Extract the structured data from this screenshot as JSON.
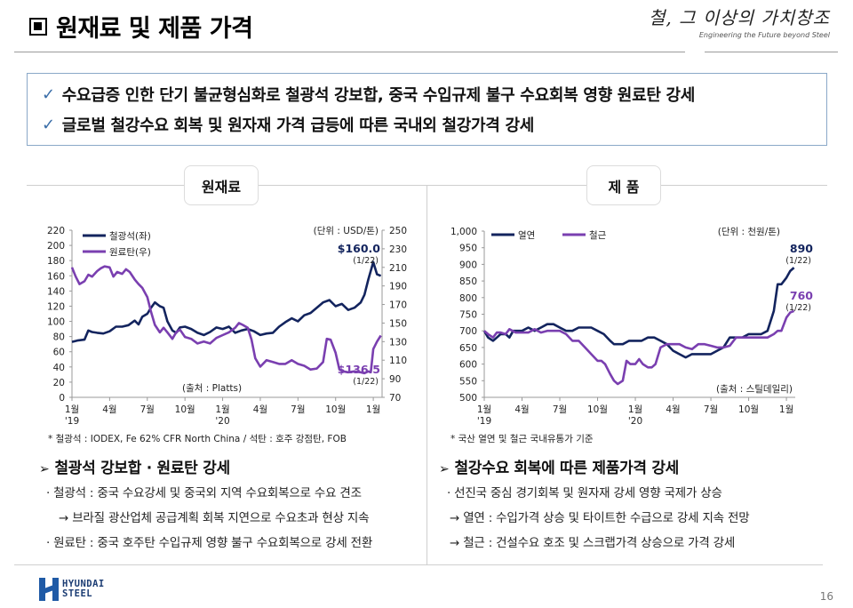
{
  "header": {
    "title": "원재료 및 제품 가격",
    "slogan_ko": "철, 그 이상의 가치창조",
    "slogan_en": "Engineering the Future beyond Steel"
  },
  "summary": [
    "수요급증 인한 단기 불균형심화로 철광석 강보합, 중국 수입규제 불구 수요회복 영향 원료탄 강세",
    "글로벌 철강수요 회복 및 원자재 가격 급등에 따른 국내외 철강가격 강세"
  ],
  "sections": {
    "left_tab": "원재료",
    "right_tab": "제 품"
  },
  "chart_data": [
    {
      "type": "line",
      "title": "원재료",
      "unit_label": "(단위 : USD/톤)",
      "source": "(출처 : Platts)",
      "footnote": "* 철광석 : IODEX, Fe 62% CFR North China / 석탄 : 호주 강점탄, FOB",
      "x_ticks": [
        "1월",
        "4월",
        "7월",
        "10월",
        "1월",
        "4월",
        "7월",
        "10월",
        "1월"
      ],
      "x_year_labels": [
        {
          "index": 0,
          "label": "'19"
        },
        {
          "index": 4,
          "label": "'20"
        }
      ],
      "y_left": {
        "ticks": [
          0,
          20,
          40,
          60,
          80,
          100,
          120,
          140,
          160,
          180,
          200,
          220
        ],
        "range": [
          0,
          220
        ]
      },
      "y_right": {
        "ticks": [
          70,
          90,
          110,
          130,
          150,
          170,
          190,
          210,
          230,
          250
        ],
        "range": [
          70,
          250
        ]
      },
      "x_range_months": [
        0,
        24.7
      ],
      "series": [
        {
          "name": "철광석(좌)",
          "axis": "left",
          "color": "#13245e",
          "x": [
            0,
            0.5,
            1,
            1.3,
            1.6,
            2,
            2.5,
            3,
            3.5,
            4,
            4.5,
            5,
            5.3,
            5.6,
            6,
            6.3,
            6.6,
            7,
            7.3,
            7.6,
            8,
            8.3,
            8.6,
            9,
            9.5,
            10,
            10.5,
            11,
            11.5,
            12,
            12.5,
            13,
            13.5,
            14,
            14.5,
            15,
            15.5,
            16,
            16.5,
            17,
            17.5,
            18,
            18.5,
            19,
            19.5,
            20,
            20.5,
            21,
            21.5,
            22,
            22.5,
            23,
            23.3,
            23.6,
            24,
            24.3,
            24.6
          ],
          "values": [
            73,
            75,
            76,
            88,
            86,
            85,
            84,
            87,
            93,
            93,
            95,
            101,
            96,
            106,
            110,
            118,
            125,
            120,
            118,
            100,
            88,
            85,
            92,
            93,
            90,
            85,
            82,
            86,
            92,
            90,
            93,
            85,
            88,
            90,
            87,
            82,
            84,
            85,
            93,
            99,
            104,
            100,
            108,
            111,
            118,
            125,
            128,
            120,
            123,
            115,
            118,
            125,
            135,
            155,
            178,
            162,
            160
          ]
        },
        {
          "name": "원료탄(우)",
          "axis": "right",
          "color": "#7a3fb0",
          "x": [
            0,
            0.3,
            0.6,
            1,
            1.3,
            1.6,
            2,
            2.3,
            2.6,
            3,
            3.3,
            3.6,
            4,
            4.3,
            4.6,
            5,
            5.3,
            5.6,
            6,
            6.3,
            6.6,
            7,
            7.3,
            7.6,
            8,
            8.3,
            8.6,
            9,
            9.5,
            10,
            10.5,
            11,
            11.5,
            12,
            12.5,
            13,
            13.3,
            13.6,
            14,
            14.3,
            14.6,
            15,
            15.5,
            16,
            16.5,
            17,
            17.5,
            18,
            18.5,
            19,
            19.5,
            20,
            20.3,
            20.6,
            21,
            21.3,
            21.6,
            22,
            22.5,
            23,
            23.3,
            23.6,
            23.8,
            24,
            24.3,
            24.6
          ],
          "values": [
            210,
            200,
            192,
            195,
            202,
            200,
            206,
            209,
            211,
            210,
            200,
            205,
            203,
            208,
            205,
            197,
            192,
            188,
            178,
            162,
            148,
            140,
            145,
            140,
            133,
            140,
            143,
            135,
            133,
            128,
            130,
            128,
            134,
            137,
            140,
            145,
            150,
            148,
            145,
            132,
            112,
            103,
            110,
            108,
            106,
            106,
            110,
            106,
            104,
            100,
            101,
            108,
            133,
            132,
            118,
            100,
            98,
            97,
            98,
            97,
            96,
            98,
            97,
            122,
            130,
            136.5
          ]
        }
      ],
      "annotations": [
        {
          "text": "$160.0",
          "date": "(1/22)",
          "series": "철광석(좌)",
          "value": 160.0
        },
        {
          "text": "$136.5",
          "date": "(1/22)",
          "series": "원료탄(우)",
          "value": 136.5
        }
      ]
    },
    {
      "type": "line",
      "title": "제 품",
      "unit_label": "(단위 : 천원/톤)",
      "source": "(출처 : 스틸데일리)",
      "footnote": "* 국산 열연 및 철근 국내유통가 기준",
      "x_ticks": [
        "1월",
        "4월",
        "7월",
        "10월",
        "1월",
        "4월",
        "7월",
        "10월",
        "1월"
      ],
      "x_year_labels": [
        {
          "index": 0,
          "label": "'19"
        },
        {
          "index": 4,
          "label": "'20"
        }
      ],
      "y_left": {
        "ticks": [
          "500",
          "550",
          "600",
          "650",
          "700",
          "750",
          "800",
          "850",
          "900",
          "950",
          "1,000"
        ],
        "range": [
          500,
          1000
        ]
      },
      "x_range_months": [
        0,
        24.7
      ],
      "series": [
        {
          "name": "열연",
          "color": "#13245e",
          "x": [
            0,
            0.3,
            0.7,
            1,
            1.3,
            1.7,
            2,
            2.3,
            2.7,
            3,
            3.5,
            4,
            4.5,
            5,
            5.5,
            6,
            6.5,
            7,
            7.5,
            8,
            8.5,
            9,
            9.5,
            10,
            10.3,
            10.7,
            11,
            11.5,
            12,
            12.5,
            13,
            13.5,
            14,
            14.5,
            15,
            15.5,
            16,
            16.5,
            17,
            17.5,
            18,
            18.5,
            19,
            19.5,
            20,
            20.5,
            21,
            21.5,
            22,
            22.5,
            23,
            23.3,
            23.6,
            24,
            24.3,
            24.6
          ],
          "values": [
            700,
            680,
            670,
            680,
            690,
            690,
            680,
            700,
            700,
            700,
            710,
            700,
            710,
            720,
            720,
            710,
            700,
            700,
            710,
            710,
            710,
            700,
            690,
            670,
            660,
            660,
            660,
            670,
            670,
            670,
            680,
            680,
            670,
            660,
            640,
            630,
            620,
            630,
            630,
            630,
            630,
            640,
            650,
            680,
            680,
            680,
            690,
            690,
            690,
            700,
            760,
            840,
            840,
            860,
            880,
            890
          ]
        },
        {
          "name": "철근",
          "color": "#7a3fb0",
          "x": [
            0,
            0.3,
            0.7,
            1,
            1.3,
            1.7,
            2,
            2.5,
            3,
            3.5,
            4,
            4.5,
            5,
            5.5,
            6,
            6.5,
            7,
            7.5,
            8,
            8.5,
            9,
            9.3,
            9.6,
            10,
            10.3,
            10.6,
            11,
            11.3,
            11.6,
            12,
            12.3,
            12.6,
            13,
            13.3,
            13.6,
            14,
            14.5,
            15,
            15.5,
            16,
            16.5,
            17,
            17.5,
            18,
            18.5,
            19,
            19.5,
            20,
            20.5,
            21,
            21.5,
            22,
            22.5,
            23,
            23.3,
            23.6,
            24,
            24.3,
            24.6
          ],
          "values": [
            700,
            690,
            680,
            695,
            695,
            690,
            705,
            695,
            695,
            695,
            705,
            695,
            700,
            700,
            700,
            690,
            670,
            670,
            650,
            630,
            610,
            610,
            600,
            570,
            550,
            540,
            550,
            610,
            600,
            600,
            615,
            600,
            590,
            590,
            600,
            650,
            660,
            660,
            660,
            650,
            645,
            660,
            660,
            655,
            650,
            650,
            655,
            680,
            680,
            680,
            680,
            680,
            680,
            690,
            700,
            700,
            740,
            755,
            760
          ]
        }
      ],
      "annotations": [
        {
          "text": "890",
          "date": "(1/22)",
          "series": "열연",
          "value": 890
        },
        {
          "text": "760",
          "date": "(1/22)",
          "series": "철근",
          "value": 760
        }
      ]
    }
  ],
  "left_text": {
    "heading": "철광석 강보합 · 원료탄 강세",
    "lines": [
      "· 철광석 :  중국 수요강세 및 중국외 지역 수요회복으로 수요 견조",
      "→ 브라질 광산업체 공급계획 회복 지연으로 수요초과 현상 지속",
      "· 원료탄 : 중국 호주탄 수입규제 영향 불구 수요회복으로 강세 전환"
    ]
  },
  "right_text": {
    "heading": "철강수요 회복에 따른 제품가격 강세",
    "lines": [
      "· 선진국 중심 경기회복 및 원자재 강세 영향 국제가 상승",
      "→ 열연 : 수입가격 상승 및 타이트한 수급으로 강세 지속 전망",
      "→ 철근 : 건설수요 호조 및 스크랩가격 상승으로 가격 강세"
    ]
  },
  "footer": {
    "logo_line1": "HYUNDAI",
    "logo_line2": "STEEL",
    "page_number": "16"
  }
}
